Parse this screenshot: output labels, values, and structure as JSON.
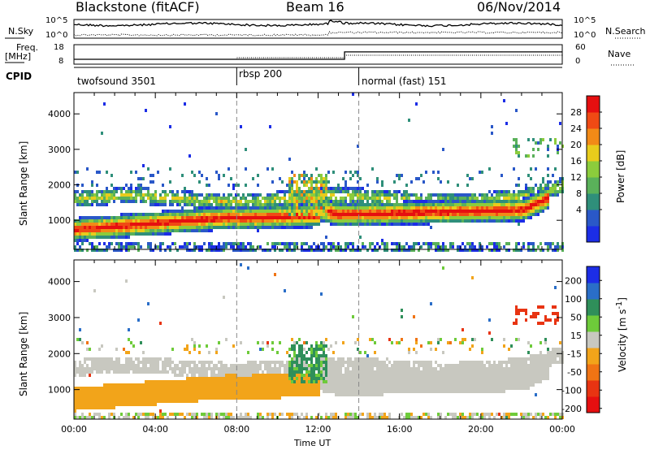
{
  "header": {
    "radar": "Blackstone (fitACF)",
    "beam": "Beam 16",
    "date": "06/Nov/2014"
  },
  "summary_panels": {
    "nsky_label": "N.Sky",
    "nsearch_label": "N.Search",
    "nsky_ticks": [
      "10^5",
      "10^0"
    ],
    "nsearch_ticks": [
      "10^5",
      "10^0"
    ],
    "freq_label": "Freq.",
    "freq_unit": "[MHz]",
    "freq_ticks": [
      "18",
      "8"
    ],
    "nave_label": "Nave",
    "nave_ticks": [
      "60",
      "0"
    ],
    "cpid_label": "CPID",
    "cpid_modes": [
      {
        "name": "twofsound 3501",
        "start": 0.0
      },
      {
        "name": "rbsp 200",
        "start": 8.0
      },
      {
        "name": "normal (fast) 151",
        "start": 14.0
      }
    ],
    "freq_step": {
      "low_mhz": 10.5,
      "high_mhz": 14.3,
      "switch_time_h": 13.3
    }
  },
  "chart_data": [
    {
      "type": "heatmap",
      "title": "",
      "quantity": "Power",
      "ylabel": "Slant Range [km]",
      "xlabel": "Time UT",
      "xlim": [
        0,
        24
      ],
      "ylim": [
        180,
        4600
      ],
      "yticks": [
        "1000",
        "2000",
        "3000",
        "4000"
      ],
      "colorbar_label": "Power [dB]",
      "colorbar_ticks": [
        "28",
        "24",
        "20",
        "16",
        "12",
        "8",
        "4"
      ],
      "colorbar_range": [
        0,
        32
      ],
      "colors": [
        "#1c2de6",
        "#2a58c8",
        "#2f8f7a",
        "#5ab15a",
        "#8ccc3c",
        "#e8cc1c",
        "#f28a17",
        "#f04a14",
        "#e60f10"
      ],
      "features": [
        {
          "name": "main F-region band",
          "t_start": 0.2,
          "t_end": 23.3,
          "range_center_km": 1100,
          "peak_db": 30
        },
        {
          "name": "far-range band",
          "t_start": 0.2,
          "t_end": 24.0,
          "range_center_km": 1850,
          "peak_db": 14
        }
      ]
    },
    {
      "type": "heatmap",
      "title": "",
      "quantity": "Velocity",
      "ylabel": "Slant Range [km]",
      "xlabel": "Time UT",
      "xlim": [
        0,
        24
      ],
      "ylim": [
        180,
        4600
      ],
      "yticks": [
        "1000",
        "2000",
        "3000",
        "4000"
      ],
      "colorbar_label": "Velocity [m s^-1]",
      "colorbar_ticks": [
        "200",
        "100",
        "50",
        "15",
        "-15",
        "-50",
        "-100",
        "-200"
      ],
      "colorbar_range": [
        -250,
        250
      ],
      "colors": [
        "#1c2de6",
        "#2a6ec8",
        "#2f8f5a",
        "#6ecb3a",
        "#c8c8c0",
        "#f2a41a",
        "#f07414",
        "#e83412",
        "#e60f10"
      ]
    }
  ],
  "time_axis": {
    "xlabel": "Time UT",
    "ticks": [
      "00:00",
      "04:00",
      "08:00",
      "12:00",
      "16:00",
      "20:00",
      "00:00"
    ]
  }
}
